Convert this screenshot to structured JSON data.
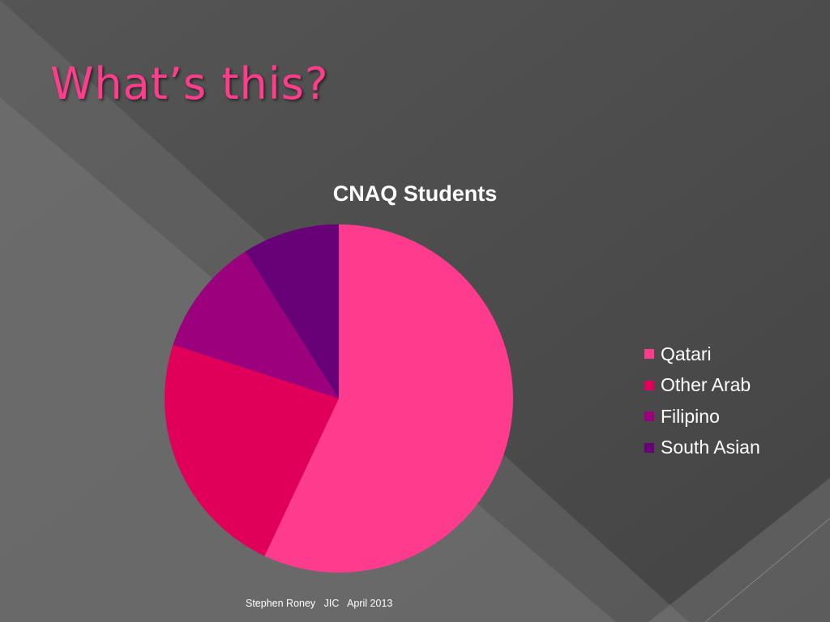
{
  "slide": {
    "title": "What’s this?",
    "title_color": "#ff3d8b",
    "footer": "Stephen Roney   JIC   April 2013"
  },
  "chart_data": {
    "type": "pie",
    "title": "CNAQ Students",
    "legend_position": "right",
    "categories": [
      "Qatari",
      "Other Arab",
      "Filipino",
      "South Asian"
    ],
    "values": [
      57,
      23,
      11,
      9
    ],
    "colors": [
      "#ff3b8d",
      "#e0005a",
      "#9b007d",
      "#680078"
    ]
  }
}
